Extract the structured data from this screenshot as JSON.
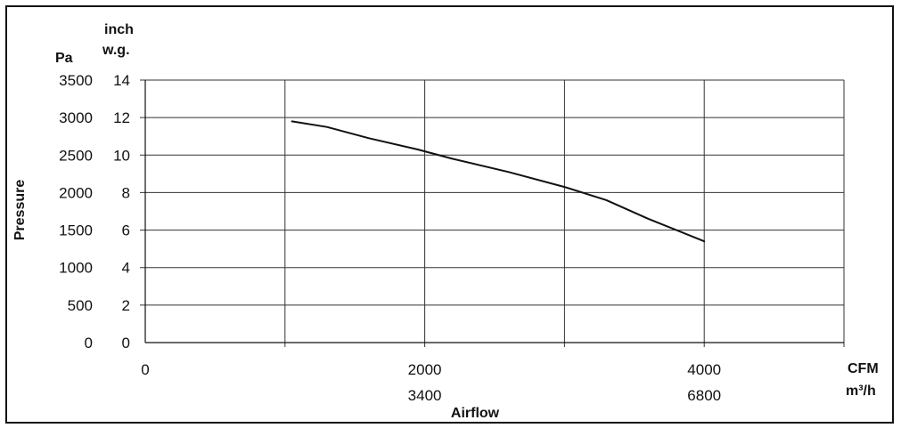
{
  "chart_data": {
    "type": "line",
    "title": "",
    "ylabel": "Pressure",
    "xlabel": "Airflow",
    "y_units": {
      "primary": "Pa",
      "secondary_line1": "inch",
      "secondary_line2": "w.g."
    },
    "x_units": {
      "primary": "CFM",
      "secondary": "m³/h"
    },
    "ylim": [
      0,
      14
    ],
    "y_ticks_inchwg": [
      "0",
      "2",
      "4",
      "6",
      "8",
      "10",
      "12",
      "14"
    ],
    "y_ticks_pa": [
      "0",
      "500",
      "1000",
      "1500",
      "2000",
      "2500",
      "3000",
      "3500"
    ],
    "xlim": [
      0,
      5000
    ],
    "x_ticks_cfm": [
      {
        "value": 0,
        "label": "0"
      },
      {
        "value": 2000,
        "label": "2000"
      },
      {
        "value": 4000,
        "label": "4000"
      }
    ],
    "x_ticks_m3h": [
      {
        "value": 2000,
        "label": "3400"
      },
      {
        "value": 4000,
        "label": "6800"
      }
    ],
    "x_gridlines": [
      1000,
      2000,
      3000,
      4000,
      5000
    ],
    "y_gridlines": [
      2,
      4,
      6,
      8,
      10,
      12,
      14
    ],
    "grid": true,
    "colors": {
      "line": "#111111",
      "grid": "#333333"
    },
    "series": [
      {
        "x": [
          1050,
          1300,
          1600,
          1950,
          2200,
          2600,
          3000,
          3300,
          3600,
          4000
        ],
        "y": [
          11.8,
          11.5,
          10.9,
          10.3,
          9.8,
          9.1,
          8.3,
          7.6,
          6.6,
          5.4
        ]
      }
    ]
  }
}
